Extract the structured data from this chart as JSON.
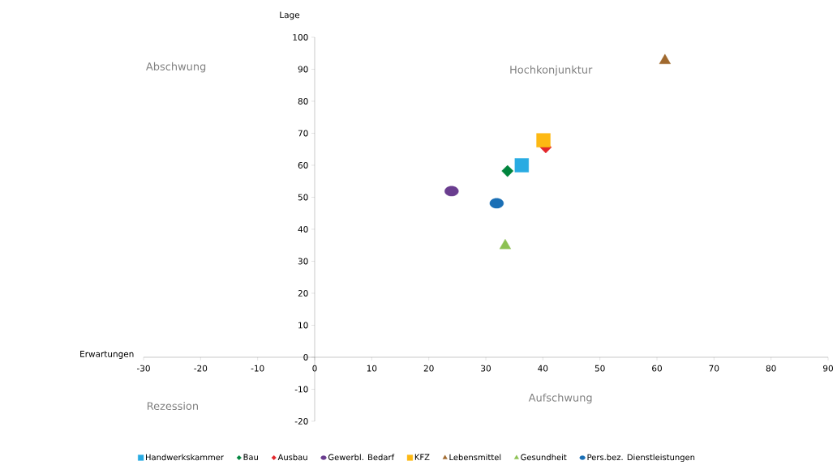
{
  "chart_data": {
    "type": "scatter",
    "xlabel": "Erwartungen",
    "ylabel": "Lage",
    "xlim": [
      -30,
      90
    ],
    "ylim": [
      -20,
      100
    ],
    "xticks": [
      -30,
      -20,
      -10,
      0,
      10,
      20,
      30,
      40,
      50,
      60,
      70,
      80,
      90
    ],
    "yticks": [
      -20,
      -10,
      0,
      10,
      20,
      30,
      40,
      50,
      60,
      70,
      80,
      90,
      100
    ],
    "grid": false,
    "legend": "bottom",
    "annotations": [
      "Abschwung",
      "Hochkonjunktur",
      "Rezession",
      "Aufschwung"
    ],
    "series": [
      {
        "name": "Handwerkskammer",
        "color": "#29abe2",
        "marker": "square",
        "x": [
          36.3
        ],
        "values": [
          60.0
        ]
      },
      {
        "name": "Bau",
        "color": "#00843d",
        "marker": "diamond",
        "x": [
          33.8
        ],
        "values": [
          58.2
        ]
      },
      {
        "name": "Ausbau",
        "color": "#e3262b",
        "marker": "diamond",
        "x": [
          40.5
        ],
        "values": [
          65.6
        ]
      },
      {
        "name": "Gewerbl. Bedarf",
        "color": "#6a3d8f",
        "marker": "circle",
        "x": [
          24.0
        ],
        "values": [
          51.9
        ]
      },
      {
        "name": "KFZ",
        "color": "#fdb913",
        "marker": "square",
        "x": [
          40.1
        ],
        "values": [
          67.8
        ]
      },
      {
        "name": "Lebensmittel",
        "color": "#a0692e",
        "marker": "triangle",
        "x": [
          61.4
        ],
        "values": [
          92.7
        ]
      },
      {
        "name": "Gesundheit",
        "color": "#8cc152",
        "marker": "triangle",
        "x": [
          33.4
        ],
        "values": [
          34.9
        ]
      },
      {
        "name": "Pers.bez. Dienstleistungen",
        "color": "#1a6fb5",
        "marker": "circle",
        "x": [
          31.9
        ],
        "values": [
          48.1
        ]
      }
    ]
  }
}
